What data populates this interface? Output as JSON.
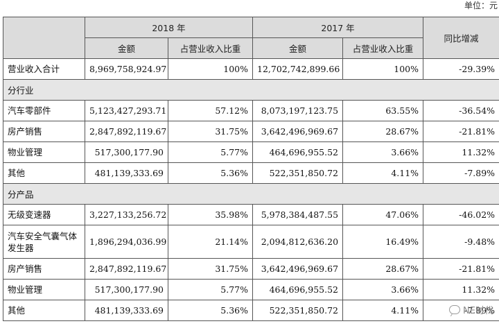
{
  "unit_label": "单位：元",
  "header": {
    "year_2018": "2018 年",
    "year_2017": "2017 年",
    "yoy": "同比增减",
    "amount": "金额",
    "ratio": "占营业收入比重"
  },
  "total": {
    "name": "营业收入合计",
    "amount_2018": "8,969,758,924.97",
    "ratio_2018": "100%",
    "amount_2017": "12,702,742,899.66",
    "ratio_2017": "100%",
    "yoy": "-29.39%"
  },
  "industry_title": "分行业",
  "industry_rows": [
    {
      "name": "汽车零部件",
      "amount_2018": "5,123,427,293.71",
      "ratio_2018": "57.12%",
      "amount_2017": "8,073,197,123.75",
      "ratio_2017": "63.55%",
      "yoy": "-36.54%"
    },
    {
      "name": "房产销售",
      "amount_2018": "2,847,892,119.67",
      "ratio_2018": "31.75%",
      "amount_2017": "3,642,496,969.67",
      "ratio_2017": "28.67%",
      "yoy": "-21.81%"
    },
    {
      "name": "物业管理",
      "amount_2018": "517,300,177.90",
      "ratio_2018": "5.77%",
      "amount_2017": "464,696,955.52",
      "ratio_2017": "3.66%",
      "yoy": "11.32%"
    },
    {
      "name": "其他",
      "amount_2018": "481,139,333.69",
      "ratio_2018": "5.36%",
      "amount_2017": "522,351,850.72",
      "ratio_2017": "4.11%",
      "yoy": "-7.89%"
    }
  ],
  "product_title": "分产品",
  "product_rows": [
    {
      "name": "无级变速器",
      "amount_2018": "3,227,133,256.72",
      "ratio_2018": "35.98%",
      "amount_2017": "5,978,384,487.55",
      "ratio_2017": "47.06%",
      "yoy": "-46.02%"
    },
    {
      "name": "汽车安全气囊气体发生器",
      "amount_2018": "1,896,294,036.99",
      "ratio_2018": "21.14%",
      "amount_2017": "2,094,812,636.20",
      "ratio_2017": "16.49%",
      "yoy": "-9.48%"
    },
    {
      "name": "房产销售",
      "amount_2018": "2,847,892,119.67",
      "ratio_2018": "31.75%",
      "amount_2017": "3,642,496,969.67",
      "ratio_2017": "28.67%",
      "yoy": "-21.81%"
    },
    {
      "name": "物业管理",
      "amount_2018": "517,300,177.90",
      "ratio_2018": "5.77%",
      "amount_2017": "464,696,955.52",
      "ratio_2017": "3.66%",
      "yoy": "11.32%"
    },
    {
      "name": "其他",
      "amount_2018": "481,139,333.69",
      "ratio_2018": "5.36%",
      "amount_2017": "522,351,850.72",
      "ratio_2017": "4.11%",
      "yoy": "-7.89%"
    }
  ],
  "watermark": "NE时代"
}
